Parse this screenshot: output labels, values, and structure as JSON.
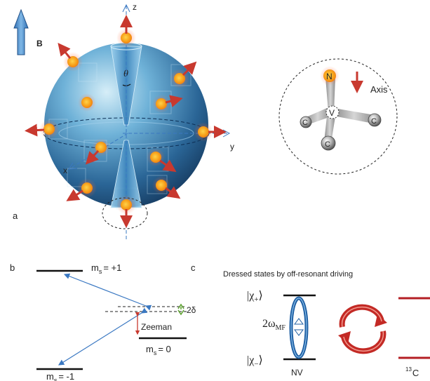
{
  "panel_a": {
    "label": "a",
    "field_label": "B",
    "axis_z": "z",
    "axis_y": "y",
    "axis_x": "x",
    "theta": "θ",
    "nv_center": {
      "n_atom": "N",
      "v_atom": "V",
      "c_atom": "C",
      "axis_label": "Axis"
    }
  },
  "panel_b": {
    "label": "b",
    "ms_plus1": "m",
    "ms_plus1_sub": "s",
    "ms_plus1_val": "= +1",
    "ms_0": "m",
    "ms_0_sub": "s",
    "ms_0_val": "= 0",
    "ms_minus1": "m",
    "ms_minus1_sub": "s",
    "ms_minus1_val": "= -1",
    "two_delta": "2δ",
    "zeeman": "Zeeman"
  },
  "panel_c": {
    "label": "c",
    "title": "Dressed states by off-resonant driving",
    "chi_plus": "|χ",
    "chi_plus_sub": "+",
    "chi_plus_end": "⟩",
    "chi_minus": "|χ",
    "chi_minus_sub": "−",
    "chi_minus_end": "⟩",
    "omega": "2ω",
    "omega_sub": "MF",
    "nv_label": "NV",
    "c13_sup": "13",
    "c13_label": "C"
  },
  "colors": {
    "sphere_dark": "#1c4a78",
    "sphere_light": "#bfe2f3",
    "spin_orange": "#f7a21b",
    "arrow_red": "#c8392f",
    "arrow_blue": "#3a78c2",
    "level_black": "#111111",
    "level_red": "#b41f24",
    "green": "#5aa02c"
  }
}
